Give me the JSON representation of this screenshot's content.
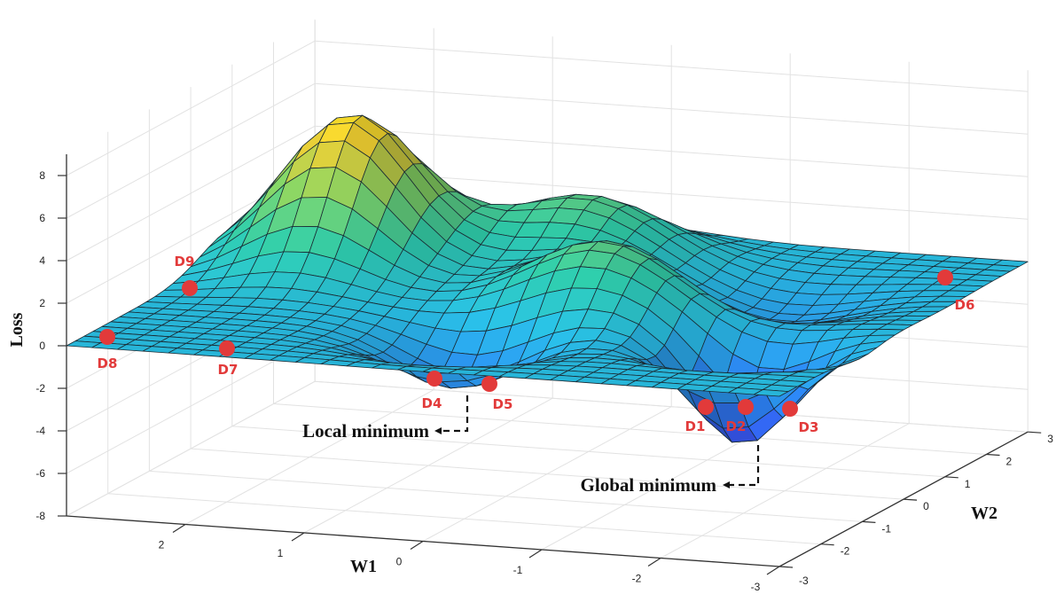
{
  "chart_data": {
    "type": "surface",
    "title": "",
    "xlabel": "W1",
    "ylabel": "W2",
    "zlabel": "Loss",
    "xlim": [
      -3,
      3
    ],
    "ylim": [
      -3,
      3
    ],
    "zlim": [
      -8,
      9
    ],
    "x_ticks": [
      "2",
      "1",
      "0",
      "-1",
      "-2",
      "-3"
    ],
    "y_ticks": [
      "-3",
      "-2",
      "-1",
      "0",
      "1",
      "2",
      "3"
    ],
    "z_ticks": [
      "8",
      "6",
      "4",
      "2",
      "0",
      "-2",
      "-4",
      "-6",
      "-8"
    ],
    "grid": true,
    "colormap": [
      "#3b3ee8",
      "#2a7be8",
      "#27b5d8",
      "#2cc0a0",
      "#7cc860",
      "#e0c030",
      "#f7e020"
    ],
    "surface_features": [
      {
        "type": "peak",
        "w1": 2,
        "w2": 1,
        "loss": 7
      },
      {
        "type": "hump",
        "w1": 0.3,
        "w2": 1.8,
        "loss": 3
      },
      {
        "type": "hump",
        "w1": -0.5,
        "w2": 0,
        "loss": 3.2
      },
      {
        "type": "local-min",
        "w1": 0.2,
        "w2": -1.5,
        "loss": -2.5
      },
      {
        "type": "global-min",
        "w1": -2,
        "w2": -1,
        "loss": -4.8
      },
      {
        "type": "dip",
        "w1": -1.5,
        "w2": 1,
        "loss": -1.5
      }
    ],
    "points": [
      {
        "label": "D1"
      },
      {
        "label": "D2"
      },
      {
        "label": "D3"
      },
      {
        "label": "D4"
      },
      {
        "label": "D5"
      },
      {
        "label": "D6"
      },
      {
        "label": "D7"
      },
      {
        "label": "D8"
      },
      {
        "label": "D9"
      }
    ],
    "point_color": "#e23a3a",
    "annotations": {
      "local": "Local minimum",
      "global": "Global minimum"
    }
  }
}
